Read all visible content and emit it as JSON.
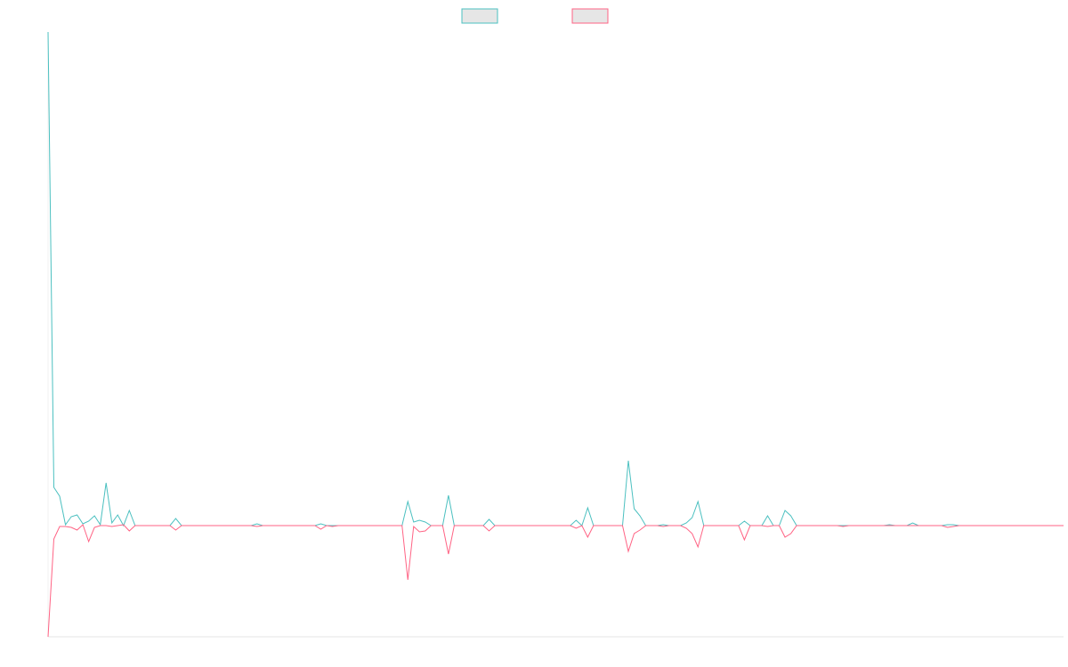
{
  "chart_data": {
    "type": "line",
    "ylim": [
      -25,
      111
    ],
    "series": [
      {
        "color": "#4bc0c0",
        "values": [
          111,
          8.6,
          6.6,
          0.2,
          2,
          2.4,
          0.4,
          1,
          2.2,
          0.2,
          9.6,
          0.6,
          2.4,
          0,
          3.4,
          0,
          0,
          0,
          0,
          0,
          0,
          0,
          1.6,
          0,
          0,
          0,
          0,
          0,
          0,
          0,
          0,
          0,
          0,
          0,
          0,
          0,
          0.4,
          0,
          0,
          0,
          0,
          0,
          0,
          0,
          0,
          0,
          0,
          0.4,
          0,
          0,
          0,
          0,
          0,
          0,
          0,
          0,
          0,
          0,
          0,
          0,
          0,
          0,
          5.4,
          0.8,
          1.2,
          0.8,
          0,
          0,
          0,
          6.8,
          0,
          0,
          0,
          0,
          0,
          0,
          1.4,
          0,
          0,
          0,
          0,
          0,
          0,
          0,
          0,
          0,
          0,
          0,
          0,
          0,
          0,
          1.2,
          0,
          4,
          0,
          0,
          0,
          0,
          0,
          0,
          14.6,
          3.8,
          2.2,
          0,
          0,
          0,
          0.2,
          0,
          0,
          0,
          0.6,
          1.8,
          5.4,
          0,
          0,
          0,
          0,
          0,
          0,
          0,
          1,
          0,
          0,
          0,
          2.2,
          0,
          0,
          3.4,
          2.2,
          0,
          0,
          0,
          0,
          0,
          0,
          0,
          0,
          0,
          0,
          0,
          0,
          0,
          0,
          0,
          0,
          0.2,
          0,
          0,
          0,
          0.6,
          0,
          0,
          0,
          0,
          0,
          0.2,
          0.2,
          0,
          0,
          0,
          0,
          0,
          0,
          0,
          0,
          0,
          0,
          0,
          0,
          0,
          0,
          0,
          0,
          0,
          0,
          0
        ]
      },
      {
        "color": "#ff6384",
        "values": [
          -25,
          -3,
          -0.2,
          -0.2,
          -0.4,
          -1,
          0.2,
          -3.6,
          -0.4,
          0,
          0,
          -0.2,
          0,
          0.2,
          -1.2,
          0,
          0,
          0,
          0,
          0,
          0,
          0,
          -1,
          0,
          0,
          0,
          0,
          0,
          0,
          0,
          0,
          0,
          0,
          0,
          0,
          0,
          -0.2,
          0,
          0,
          0,
          0,
          0,
          0,
          0,
          0,
          0,
          0,
          -0.8,
          0,
          -0.2,
          0,
          0,
          0,
          0,
          0,
          0,
          0,
          0,
          0,
          0,
          0,
          0,
          -12.2,
          -0.2,
          -1.4,
          -1.2,
          0,
          0,
          0,
          -6.4,
          0,
          0,
          0,
          0,
          0,
          0,
          -1.2,
          0,
          0,
          0,
          0,
          0,
          0,
          0,
          0,
          0,
          0,
          0,
          0,
          0,
          0,
          -0.6,
          0,
          -2.6,
          0,
          0,
          0,
          0,
          0,
          0,
          -5.8,
          -1.8,
          -1,
          0,
          0,
          0,
          -0.2,
          0,
          0,
          0,
          -0.6,
          -1.8,
          -4.8,
          0,
          0,
          0,
          0,
          0,
          0,
          0,
          -3.2,
          0,
          0,
          0,
          -0.2,
          0,
          0,
          -2.6,
          -1.8,
          0,
          0,
          0,
          0,
          0,
          0,
          0,
          0,
          -0.2,
          0,
          0,
          0,
          0,
          0,
          0,
          0,
          0,
          0,
          0,
          0,
          0,
          0,
          0,
          0,
          0,
          0,
          -0.4,
          -0.2,
          0,
          0,
          0,
          0,
          0,
          0,
          0,
          0,
          0,
          0,
          0,
          0,
          0,
          0,
          0,
          0,
          0,
          0,
          0
        ]
      }
    ]
  }
}
